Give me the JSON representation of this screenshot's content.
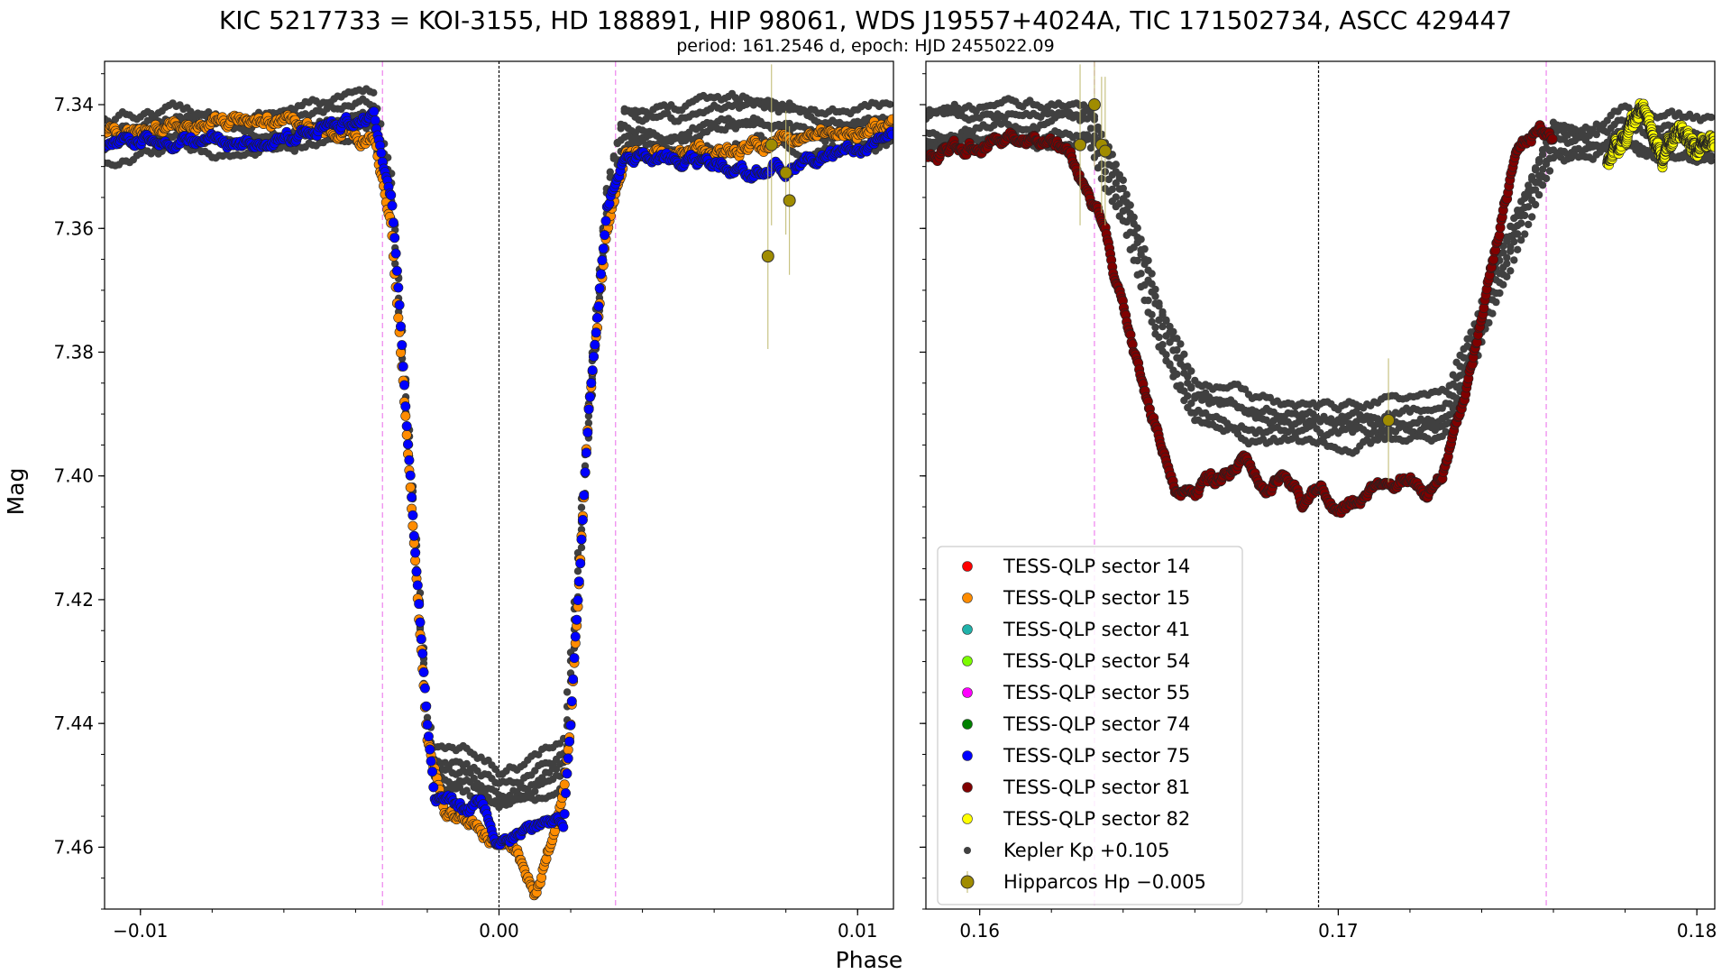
{
  "title": "KIC 5217733 = KOI-3155, HD 188891, HIP 98061, WDS J19557+4024A, TIC 171502734, ASCC 429447",
  "subtitle": "period: 161.2546 d, epoch: HJD 2455022.09",
  "xlabel": "Phase",
  "ylabel": "Mag",
  "chart_data": [
    {
      "type": "scatter",
      "panel": "left",
      "xlim": [
        -0.011,
        0.011
      ],
      "ylim": [
        7.47,
        7.333
      ],
      "y_inverted": true,
      "x_ticks": [
        "−0.01",
        "0.00",
        "0.01"
      ],
      "x_tick_values": [
        -0.01,
        0.0,
        0.01
      ],
      "y_ticks": [
        "7.34",
        "7.36",
        "7.38",
        "7.40",
        "7.42",
        "7.44",
        "7.46"
      ],
      "y_tick_values": [
        7.34,
        7.36,
        7.38,
        7.4,
        7.42,
        7.44,
        7.46
      ],
      "vlines": [
        {
          "x": 0.0,
          "color": "#000000",
          "style": "dotted"
        },
        {
          "x": -0.00325,
          "color": "#ee82ee",
          "style": "dashed"
        },
        {
          "x": 0.00325,
          "color": "#ee82ee",
          "style": "dashed"
        }
      ],
      "series": [
        {
          "name": "Kepler Kp +0.105",
          "color": "#404040",
          "note": "several overlapping transits, out-of-transit 7.337–7.353, bottom ~7.447–7.456",
          "x": [
            -0.011,
            -0.009,
            -0.007,
            -0.005,
            -0.0035,
            -0.003,
            -0.0025,
            -0.002,
            -0.0018,
            -0.001,
            0.0,
            0.001,
            0.0018,
            0.002,
            0.0025,
            0.003,
            0.0035,
            0.005,
            0.007,
            0.009,
            0.011
          ],
          "y": [
            7.346,
            7.344,
            7.345,
            7.343,
            7.342,
            7.355,
            7.395,
            7.44,
            7.447,
            7.448,
            7.451,
            7.449,
            7.446,
            7.432,
            7.39,
            7.356,
            7.343,
            7.344,
            7.342,
            7.344,
            7.343
          ]
        },
        {
          "name": "TESS-QLP sector 15",
          "color": "#ff8c00",
          "x": [
            -0.011,
            -0.009,
            -0.007,
            -0.005,
            -0.0035,
            -0.003,
            -0.0025,
            -0.002,
            -0.0015,
            -0.001,
            0.0,
            0.0005,
            0.001,
            0.0013,
            0.0018,
            0.002,
            0.0025,
            0.003,
            0.0035,
            0.005,
            0.007,
            0.009,
            0.011
          ],
          "y": [
            7.345,
            7.343,
            7.342,
            7.344,
            7.346,
            7.36,
            7.4,
            7.443,
            7.454,
            7.456,
            7.459,
            7.461,
            7.467,
            7.462,
            7.452,
            7.44,
            7.39,
            7.36,
            7.348,
            7.348,
            7.347,
            7.345,
            7.343
          ]
        },
        {
          "name": "TESS-QLP sector 75",
          "color": "#0000ff",
          "x": [
            -0.011,
            -0.009,
            -0.007,
            -0.005,
            -0.0035,
            -0.003,
            -0.0025,
            -0.002,
            -0.0018,
            -0.001,
            -0.0005,
            0.0,
            0.0005,
            0.001,
            0.0018,
            0.002,
            0.0025,
            0.003,
            0.0035,
            0.005,
            0.007,
            0.009,
            0.011
          ],
          "y": [
            7.346,
            7.345,
            7.347,
            7.344,
            7.342,
            7.355,
            7.398,
            7.44,
            7.452,
            7.454,
            7.453,
            7.459,
            7.458,
            7.457,
            7.456,
            7.44,
            7.39,
            7.356,
            7.348,
            7.349,
            7.351,
            7.349,
            7.345
          ]
        },
        {
          "name": "Hipparcos Hp −0.005",
          "color": "#a08c00",
          "x": [
            0.0075,
            0.0076,
            0.008,
            0.0081
          ],
          "y": [
            7.3645,
            7.3465,
            7.351,
            7.3555
          ],
          "yerr": [
            0.015,
            0.013,
            0.01,
            0.012
          ]
        }
      ]
    },
    {
      "type": "scatter",
      "panel": "right",
      "xlim": [
        0.1585,
        0.1805
      ],
      "ylim": [
        7.47,
        7.333
      ],
      "y_inverted": true,
      "x_ticks": [
        "0.16",
        "0.17",
        "0.18"
      ],
      "x_tick_values": [
        0.16,
        0.17,
        0.18
      ],
      "vlines": [
        {
          "x": 0.16945,
          "color": "#000000",
          "style": "dotted"
        },
        {
          "x": 0.1632,
          "color": "#ee82ee",
          "style": "dashed"
        },
        {
          "x": 0.1758,
          "color": "#ee82ee",
          "style": "dashed"
        }
      ],
      "series": [
        {
          "name": "Kepler Kp +0.105",
          "color": "#404040",
          "x": [
            0.1585,
            0.161,
            0.163,
            0.164,
            0.165,
            0.166,
            0.168,
            0.17,
            0.172,
            0.173,
            0.174,
            0.175,
            0.176,
            0.177,
            0.178,
            0.1805
          ],
          "y": [
            7.344,
            7.343,
            7.343,
            7.355,
            7.375,
            7.388,
            7.391,
            7.392,
            7.391,
            7.39,
            7.375,
            7.36,
            7.345,
            7.346,
            7.344,
            7.346
          ]
        },
        {
          "name": "TESS-QLP sector 81",
          "color": "#800000",
          "x": [
            0.1585,
            0.1595,
            0.1605,
            0.1615,
            0.1625,
            0.1635,
            0.1645,
            0.1655,
            0.166,
            0.1665,
            0.167,
            0.1675,
            0.168,
            0.1685,
            0.169,
            0.1695,
            0.17,
            0.1705,
            0.171,
            0.1715,
            0.172,
            0.1725,
            0.173,
            0.1735,
            0.174,
            0.1745,
            0.175,
            0.1755,
            0.176
          ],
          "y": [
            7.348,
            7.347,
            7.346,
            7.345,
            7.347,
            7.36,
            7.385,
            7.402,
            7.402,
            7.401,
            7.4,
            7.398,
            7.403,
            7.4,
            7.404,
            7.402,
            7.406,
            7.405,
            7.403,
            7.401,
            7.4,
            7.403,
            7.398,
            7.388,
            7.375,
            7.36,
            7.348,
            7.344,
            7.345
          ]
        },
        {
          "name": "TESS-QLP sector 82",
          "color": "#ffff00",
          "x": [
            0.1775,
            0.178,
            0.1785,
            0.179,
            0.1795,
            0.18,
            0.1805
          ],
          "y": [
            7.349,
            7.345,
            7.34,
            7.349,
            7.344,
            7.347,
            7.346
          ]
        },
        {
          "name": "Hipparcos Hp −0.005",
          "color": "#a08c00",
          "x": [
            0.1628,
            0.1632,
            0.1634,
            0.1635,
            0.1714
          ],
          "y": [
            7.3465,
            7.34,
            7.3465,
            7.3475,
            7.391
          ],
          "yerr": [
            0.013,
            0.01,
            0.011,
            0.012,
            0.01
          ]
        }
      ]
    }
  ],
  "legend": {
    "placement": "lower-left of right panel",
    "items": [
      {
        "label": "TESS-QLP sector 14",
        "color": "#ff0000",
        "marker": "dot"
      },
      {
        "label": "TESS-QLP sector 15",
        "color": "#ff8c00",
        "marker": "dot"
      },
      {
        "label": "TESS-QLP sector 41",
        "color": "#20b2aa",
        "marker": "dot"
      },
      {
        "label": "TESS-QLP sector 54",
        "color": "#7cfc00",
        "marker": "dot"
      },
      {
        "label": "TESS-QLP sector 55",
        "color": "#ff00ff",
        "marker": "dot"
      },
      {
        "label": "TESS-QLP sector 74",
        "color": "#008000",
        "marker": "dot"
      },
      {
        "label": "TESS-QLP sector 75",
        "color": "#0000ff",
        "marker": "dot"
      },
      {
        "label": "TESS-QLP sector 81",
        "color": "#800000",
        "marker": "dot"
      },
      {
        "label": "TESS-QLP sector 82",
        "color": "#ffff00",
        "marker": "dot"
      },
      {
        "label": "Kepler Kp +0.105",
        "color": "#404040",
        "marker": "small-dot"
      },
      {
        "label": "Hipparcos Hp −0.005",
        "color": "#a08c00",
        "marker": "errorbar-dot"
      }
    ]
  }
}
